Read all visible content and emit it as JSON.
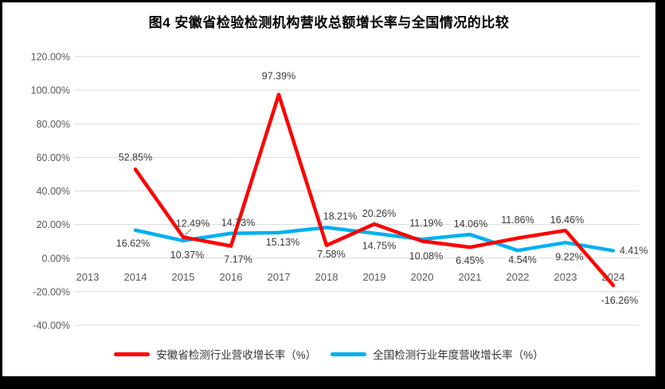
{
  "window": {
    "background": "#ffffff",
    "frame_color": "#000000"
  },
  "chart_data": {
    "type": "line",
    "title": "图4 安徽省检验检测机构营收总额增长率与全国情况的比较",
    "categories": [
      "2013",
      "2014",
      "2015",
      "2016",
      "2017",
      "2018",
      "2019",
      "2020",
      "2021",
      "2022",
      "2023",
      "2024"
    ],
    "y_ticks": [
      "120.00%",
      "100.00%",
      "80.00%",
      "60.00%",
      "40.00%",
      "20.00%",
      "0.00%",
      "-20.00%",
      "-40.00%"
    ],
    "ylim": [
      -40,
      120
    ],
    "y_tick_step": 20,
    "grid": true,
    "legend_position": "bottom",
    "label_format": "0.00%",
    "colors": {
      "gridline": "#D9D9D9",
      "axis_text": "#595959",
      "data_label": "#3A3A3A",
      "leader": "#A6A6A6"
    },
    "series": [
      {
        "name": "安徽省检测行业营收增长率（%）",
        "color": "#FF0000",
        "values": [
          null,
          52.85,
          12.49,
          7.17,
          97.39,
          7.58,
          20.26,
          10.08,
          6.45,
          11.86,
          16.46,
          -16.26
        ],
        "label_pos": [
          null,
          "above",
          "above",
          "below",
          "above",
          "below",
          "above",
          "below",
          "below",
          "above",
          "above",
          "below"
        ],
        "label_dx": [
          0,
          0,
          12,
          9,
          0,
          6,
          6,
          5,
          0,
          0,
          2,
          8
        ],
        "label_dy": [
          0,
          -2,
          -4,
          0,
          -10,
          -6,
          0,
          2,
          0,
          -10,
          0,
          2
        ],
        "label_leader": [
          false,
          false,
          true,
          false,
          false,
          false,
          false,
          false,
          false,
          false,
          false,
          false
        ]
      },
      {
        "name": "全国检测行业年度营收增长率（%）",
        "color": "#00B0F0",
        "values": [
          null,
          16.62,
          10.37,
          14.73,
          15.13,
          18.21,
          14.75,
          11.19,
          14.06,
          4.54,
          9.22,
          4.41
        ],
        "label_pos": [
          null,
          "below",
          "below",
          "above",
          "below",
          "above",
          "below",
          "above",
          "above",
          "below",
          "below",
          "right"
        ],
        "label_dx": [
          0,
          -3,
          5,
          9,
          5,
          17,
          6,
          5,
          1,
          6,
          5,
          0
        ],
        "label_dy": [
          0,
          0,
          1,
          0,
          -5,
          -1,
          -1,
          -7,
          0,
          -5,
          1,
          0
        ],
        "label_leader": [
          false,
          false,
          false,
          false,
          false,
          false,
          false,
          false,
          false,
          false,
          false,
          false
        ]
      }
    ]
  }
}
